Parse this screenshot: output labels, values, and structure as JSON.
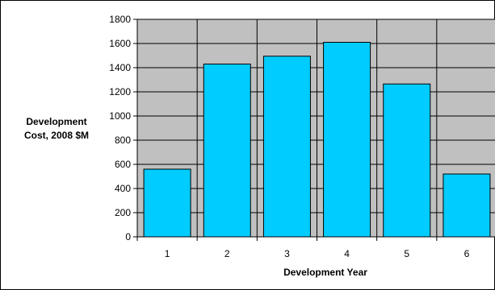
{
  "chart_data": {
    "type": "bar",
    "title": "",
    "xlabel": "Development Year",
    "ylabel_lines": [
      "Development",
      "Cost, 2008 $M"
    ],
    "categories": [
      "1",
      "2",
      "3",
      "4",
      "5",
      "6"
    ],
    "values": [
      560,
      1430,
      1495,
      1610,
      1265,
      520
    ],
    "ylim": [
      0,
      1800
    ],
    "ytick_step": 200,
    "yticks": [
      "0",
      "200",
      "400",
      "600",
      "800",
      "1000",
      "1200",
      "1400",
      "1600",
      "1800"
    ],
    "grid": true,
    "legend": "none",
    "colors": {
      "bar_fill": "#00ccff",
      "bar_stroke": "#000000",
      "plot_background": "#c0c0c0",
      "grid": "#000000"
    }
  }
}
